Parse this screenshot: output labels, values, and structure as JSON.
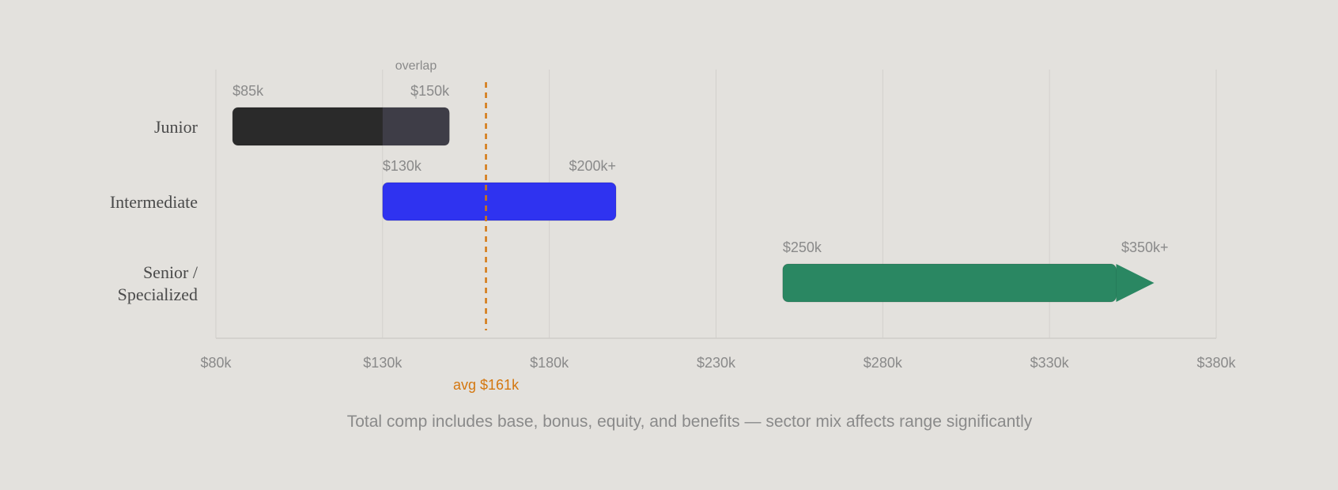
{
  "chart_data": {
    "type": "bar",
    "orientation": "horizontal-range",
    "xlim": [
      80,
      380
    ],
    "x_ticks": [
      {
        "value": 80,
        "label": "$80k"
      },
      {
        "value": 130,
        "label": "$130k"
      },
      {
        "value": 180,
        "label": "$180k"
      },
      {
        "value": 230,
        "label": "$230k"
      },
      {
        "value": 280,
        "label": "$280k"
      },
      {
        "value": 330,
        "label": "$330k"
      },
      {
        "value": 380,
        "label": "$380k"
      }
    ],
    "grid": true,
    "categories": [
      {
        "lines": [
          "Junior"
        ],
        "start": 85,
        "end": 150,
        "start_label": "$85k",
        "end_label": "$150k",
        "color": "#2a2a2a",
        "open_ended": false
      },
      {
        "lines": [
          "Intermediate"
        ],
        "start": 130,
        "end": 200,
        "start_label": "$130k",
        "end_label": "$200k+",
        "color": "#2f33f0",
        "open_ended": false
      },
      {
        "lines": [
          "Senior /",
          "Specialized"
        ],
        "start": 250,
        "end": 350,
        "start_label": "$250k",
        "end_label": "$350k+",
        "color": "#2a8762",
        "open_ended": true
      }
    ],
    "overlap": {
      "start": 130,
      "end": 150,
      "label": "overlap",
      "color": "#3e3d47"
    },
    "average": {
      "value": 161,
      "label": "avg $161k",
      "color": "#d4770f"
    },
    "caption": "Total comp includes base, bonus, equity, and benefits — sector mix affects range significantly"
  }
}
